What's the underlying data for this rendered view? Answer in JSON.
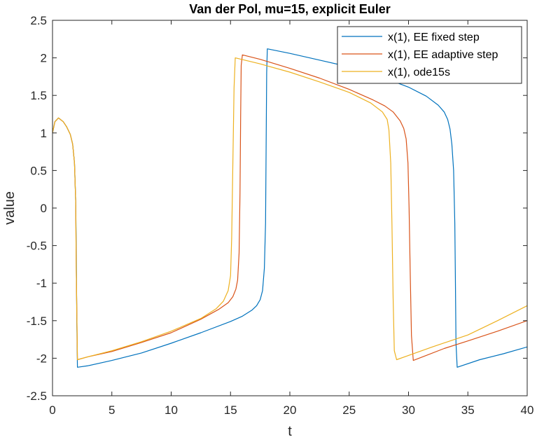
{
  "chart_data": {
    "type": "line",
    "title": "Van der Pol, mu=15, explicit Euler",
    "xlabel": "t",
    "ylabel": "value",
    "xlim": [
      0,
      40
    ],
    "ylim": [
      -2.5,
      2.5
    ],
    "x_ticks": [
      0,
      5,
      10,
      15,
      20,
      25,
      30,
      35,
      40
    ],
    "x_tick_labels": [
      "0",
      "5",
      "10",
      "15",
      "20",
      "25",
      "30",
      "35",
      "40"
    ],
    "y_ticks": [
      -2.5,
      -2,
      -1.5,
      -1,
      -0.5,
      0,
      0.5,
      1,
      1.5,
      2,
      2.5
    ],
    "y_tick_labels": [
      "-2.5",
      "-2",
      "-1.5",
      "-1",
      "-0.5",
      "0",
      "0.5",
      "1",
      "1.5",
      "2",
      "2.5"
    ],
    "grid": false,
    "box": true,
    "legend_position": "top-right",
    "series": [
      {
        "name": "x(1), EE fixed step",
        "color": "#0072BD",
        "x": [
          0,
          0.2,
          0.5,
          0.9,
          1.2,
          1.5,
          1.7,
          1.85,
          1.95,
          2.0,
          2.05,
          2.1,
          3,
          5,
          7.5,
          10,
          12.5,
          15,
          16,
          16.8,
          17.2,
          17.5,
          17.7,
          17.85,
          17.95,
          18.0,
          18.05,
          18.1,
          20,
          22.5,
          25,
          27.5,
          30,
          31.5,
          32.5,
          33,
          33.3,
          33.5,
          33.65,
          33.8,
          33.9,
          33.95,
          34.0,
          34.1,
          36,
          38,
          40
        ],
        "y": [
          1.0,
          1.15,
          1.2,
          1.15,
          1.08,
          0.98,
          0.85,
          0.6,
          0.1,
          -0.5,
          -1.5,
          -2.12,
          -2.1,
          -2.03,
          -1.93,
          -1.8,
          -1.66,
          -1.51,
          -1.44,
          -1.36,
          -1.3,
          -1.22,
          -1.1,
          -0.8,
          -0.2,
          0.8,
          1.8,
          2.12,
          2.06,
          1.97,
          1.88,
          1.76,
          1.61,
          1.49,
          1.37,
          1.28,
          1.18,
          1.05,
          0.85,
          0.5,
          -0.2,
          -1.0,
          -1.8,
          -2.12,
          -2.02,
          -1.94,
          -1.85
        ]
      },
      {
        "name": "x(1), EE adaptive step",
        "color": "#D95319",
        "x": [
          0,
          0.2,
          0.5,
          0.9,
          1.2,
          1.5,
          1.7,
          1.85,
          1.95,
          2.0,
          2.1,
          3,
          5,
          7.5,
          10,
          12.5,
          14,
          14.8,
          15.2,
          15.45,
          15.6,
          15.72,
          15.8,
          15.85,
          15.9,
          16,
          17.5,
          20,
          22.5,
          25,
          27,
          28,
          28.7,
          29.3,
          29.6,
          29.8,
          29.95,
          30.05,
          30.15,
          30.25,
          30.4,
          33,
          35,
          37.5,
          40
        ],
        "y": [
          1.0,
          1.15,
          1.2,
          1.15,
          1.08,
          0.98,
          0.85,
          0.6,
          0.1,
          -0.8,
          -2.02,
          -1.98,
          -1.91,
          -1.79,
          -1.66,
          -1.48,
          -1.35,
          -1.26,
          -1.18,
          -1.08,
          -0.96,
          -0.6,
          0.2,
          1.2,
          1.9,
          2.04,
          1.98,
          1.86,
          1.73,
          1.58,
          1.44,
          1.36,
          1.28,
          1.16,
          1.06,
          0.92,
          0.6,
          0.0,
          -0.9,
          -1.7,
          -2.03,
          -1.87,
          -1.77,
          -1.64,
          -1.5
        ]
      },
      {
        "name": "x(1), ode15s",
        "color": "#EDB120",
        "x": [
          0,
          0.2,
          0.5,
          0.9,
          1.2,
          1.5,
          1.7,
          1.85,
          1.95,
          2.0,
          2.1,
          3,
          5,
          7.5,
          10,
          12.5,
          13.8,
          14.4,
          14.8,
          15.0,
          15.1,
          15.2,
          15.3,
          15.4,
          17.5,
          20,
          22.5,
          25,
          26.8,
          27.8,
          28.2,
          28.35,
          28.5,
          28.6,
          28.7,
          28.8,
          29,
          32,
          35,
          37.5,
          40
        ],
        "y": [
          1.0,
          1.15,
          1.2,
          1.15,
          1.08,
          0.98,
          0.85,
          0.6,
          0.1,
          -0.8,
          -2.02,
          -1.98,
          -1.9,
          -1.78,
          -1.64,
          -1.47,
          -1.34,
          -1.24,
          -1.1,
          -0.9,
          -0.4,
          0.6,
          1.6,
          2.0,
          1.92,
          1.81,
          1.68,
          1.54,
          1.4,
          1.28,
          1.18,
          1.04,
          0.6,
          -0.2,
          -1.2,
          -1.9,
          -2.02,
          -1.85,
          -1.69,
          -1.5,
          -1.3
        ]
      }
    ]
  }
}
